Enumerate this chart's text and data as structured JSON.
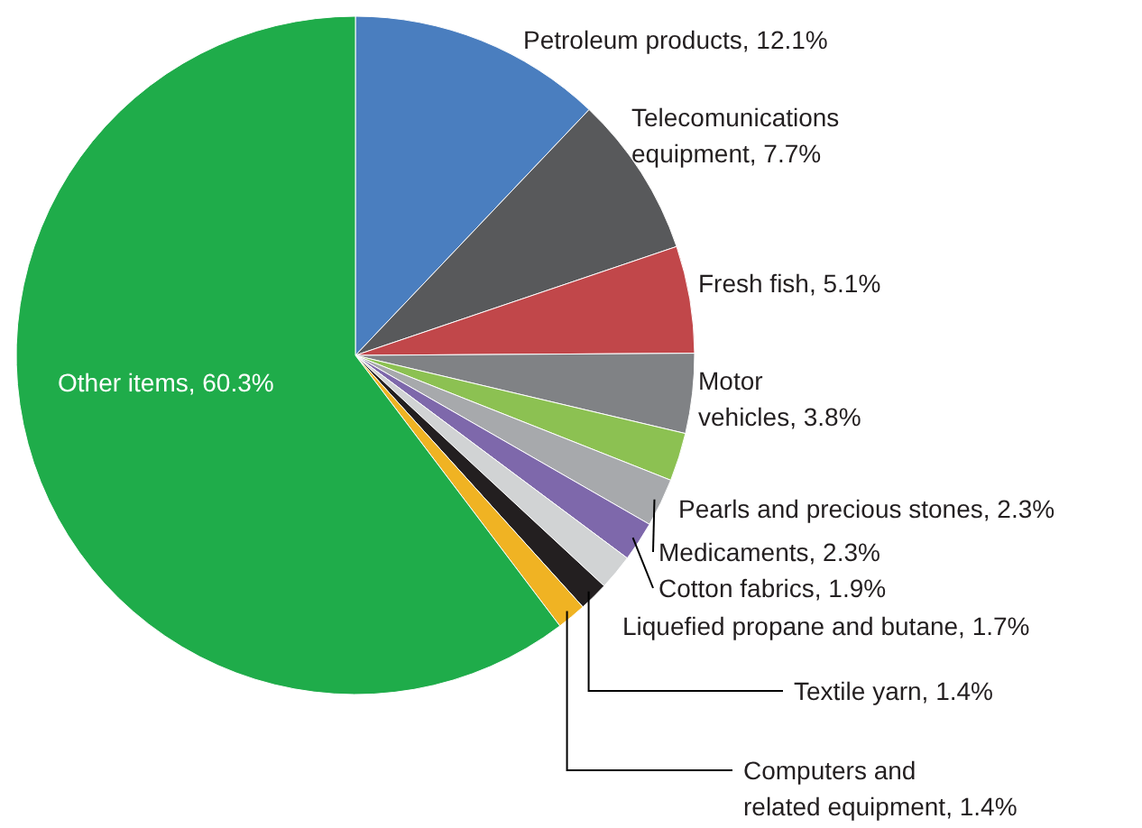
{
  "chart_data": {
    "type": "pie",
    "categories": [
      "Petroleum products",
      "Telecomunications equipment",
      "Fresh fish",
      "Motor vehicles",
      "Pearls and precious stones",
      "Medicaments",
      "Cotton fabrics",
      "Liquefied propane and butane",
      "Textile yarn",
      "Computers and related equipment",
      "Other items"
    ],
    "values": [
      12.1,
      7.7,
      5.1,
      3.8,
      2.3,
      2.3,
      1.9,
      1.7,
      1.4,
      1.4,
      60.3
    ],
    "value_labels": [
      "12.1%",
      "7.7%",
      "5.1%",
      "3.8%",
      "2.3%",
      "2.3%",
      "1.9%",
      "1.7%",
      "1.4%",
      "1.4%",
      "60.3%"
    ],
    "colors": [
      "#4a7ebf",
      "#58595b",
      "#c1474a",
      "#808285",
      "#8cc152",
      "#a7a9ac",
      "#7e68ab",
      "#d1d3d4",
      "#231f20",
      "#f0b323",
      "#1fac4a"
    ]
  }
}
